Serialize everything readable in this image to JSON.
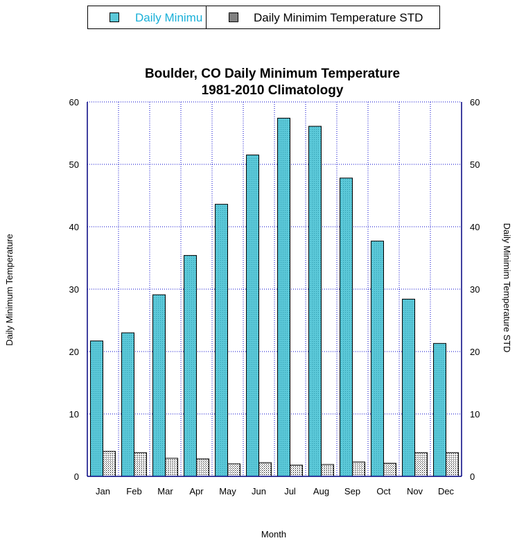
{
  "chart_data": {
    "type": "bar",
    "title": "Boulder, CO Daily Minimum Temperature",
    "subtitle": "1981-2010 Climatology",
    "xlabel": "Month",
    "ylabel": "Daily Minimum Temperature",
    "y2label": "Daily Minimim Temperature STD",
    "categories": [
      "Jan",
      "Feb",
      "Mar",
      "Apr",
      "May",
      "Jun",
      "Jul",
      "Aug",
      "Sep",
      "Oct",
      "Nov",
      "Dec"
    ],
    "ylim": [
      0,
      60
    ],
    "yticks": [
      0,
      10,
      20,
      30,
      40,
      50,
      60
    ],
    "y2lim": [
      0,
      60
    ],
    "grid": true,
    "legend_position": "top",
    "series": [
      {
        "name": "Daily Minimum Temperature",
        "legend_visible_text": "Daily Minimu",
        "color": "#5bc8d8",
        "values": [
          21.7,
          23.0,
          29.1,
          35.4,
          43.6,
          51.5,
          57.4,
          56.1,
          47.8,
          37.7,
          28.4,
          21.3
        ]
      },
      {
        "name": "Daily Minimim Temperature STD",
        "color": "#ffffff",
        "pattern": "dots",
        "values": [
          4.0,
          3.8,
          2.9,
          2.8,
          2.0,
          2.2,
          1.8,
          1.9,
          2.3,
          2.1,
          3.8,
          3.8
        ]
      }
    ],
    "colors": {
      "grid": "#0000cc",
      "axis": "#000080",
      "legend_label_1": "#1ab0d8"
    }
  }
}
